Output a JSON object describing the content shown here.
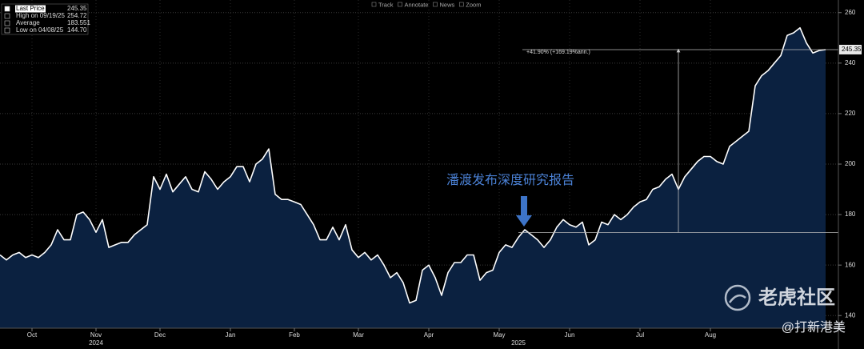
{
  "chart_data": {
    "type": "line",
    "color": "#ffffff",
    "area_color": "#0b2140",
    "values": [
      164,
      162,
      164,
      165,
      163,
      164,
      163,
      165,
      168,
      174,
      170,
      170,
      180,
      181,
      178,
      173,
      178,
      167,
      168,
      169,
      169,
      172,
      174,
      176,
      195,
      190,
      196,
      189,
      192,
      195,
      190,
      189,
      197,
      194,
      190,
      193,
      195,
      199,
      199,
      193,
      200,
      202,
      206,
      188,
      186,
      186,
      185,
      184,
      180,
      176,
      170,
      170,
      175,
      170,
      176,
      166,
      163,
      165,
      162,
      164,
      160,
      155,
      157,
      153,
      145,
      146,
      158,
      160,
      155,
      148,
      157,
      161,
      161,
      164,
      164,
      154,
      157,
      158,
      165,
      168,
      167,
      171,
      174,
      172,
      170,
      167,
      170,
      175,
      178,
      176,
      175,
      177,
      168,
      170,
      177,
      176,
      180,
      178,
      180,
      183,
      185,
      186,
      190,
      191,
      194,
      196,
      190,
      195,
      198,
      201,
      203,
      203,
      201,
      200,
      207,
      209,
      211,
      213,
      231,
      235,
      237,
      240,
      243,
      251,
      252,
      254,
      248,
      244,
      245,
      245.35
    ],
    "ylim": [
      135,
      265
    ],
    "yticks": [
      140,
      160,
      180,
      200,
      220,
      240,
      260
    ],
    "grid": true,
    "xticks": [
      {
        "value": 5,
        "label": "Oct"
      },
      {
        "value": 15,
        "label": "Nov"
      },
      {
        "value": 25,
        "label": "Dec"
      },
      {
        "value": 36,
        "label": "Jan"
      },
      {
        "value": 46,
        "label": "Feb"
      },
      {
        "value": 56,
        "label": "Mar"
      },
      {
        "value": 67,
        "label": "Apr"
      },
      {
        "value": 78,
        "label": "May"
      },
      {
        "value": 89,
        "label": "Jun"
      },
      {
        "value": 100,
        "label": "Jul"
      },
      {
        "value": 111,
        "label": "Aug"
      }
    ],
    "year_ticks": [
      {
        "value": 15,
        "label": "2024"
      },
      {
        "value": 81,
        "label": "2025"
      }
    ],
    "legend": [
      {
        "name": "Last Price",
        "value": 245.35
      },
      {
        "name": "High on 09/19/25",
        "value": 254.72
      },
      {
        "name": "Average",
        "value": 183.551
      },
      {
        "name": "Low on 04/08/25",
        "value": 144.7,
        "value_label": "144.70"
      }
    ],
    "measure": {
      "label": "+41.90% (+169.19%ann.)",
      "start": 172.9,
      "end": 245.35,
      "start_index": 81,
      "span_index": 106
    },
    "callout": {
      "text": "潘渡发布深度研究报告",
      "index": 81
    }
  },
  "toolbar": [
    "Track",
    "Annotate",
    "News",
    "Zoom"
  ],
  "watermark": {
    "brand": "老虎社区",
    "handle": "@打新港美"
  }
}
